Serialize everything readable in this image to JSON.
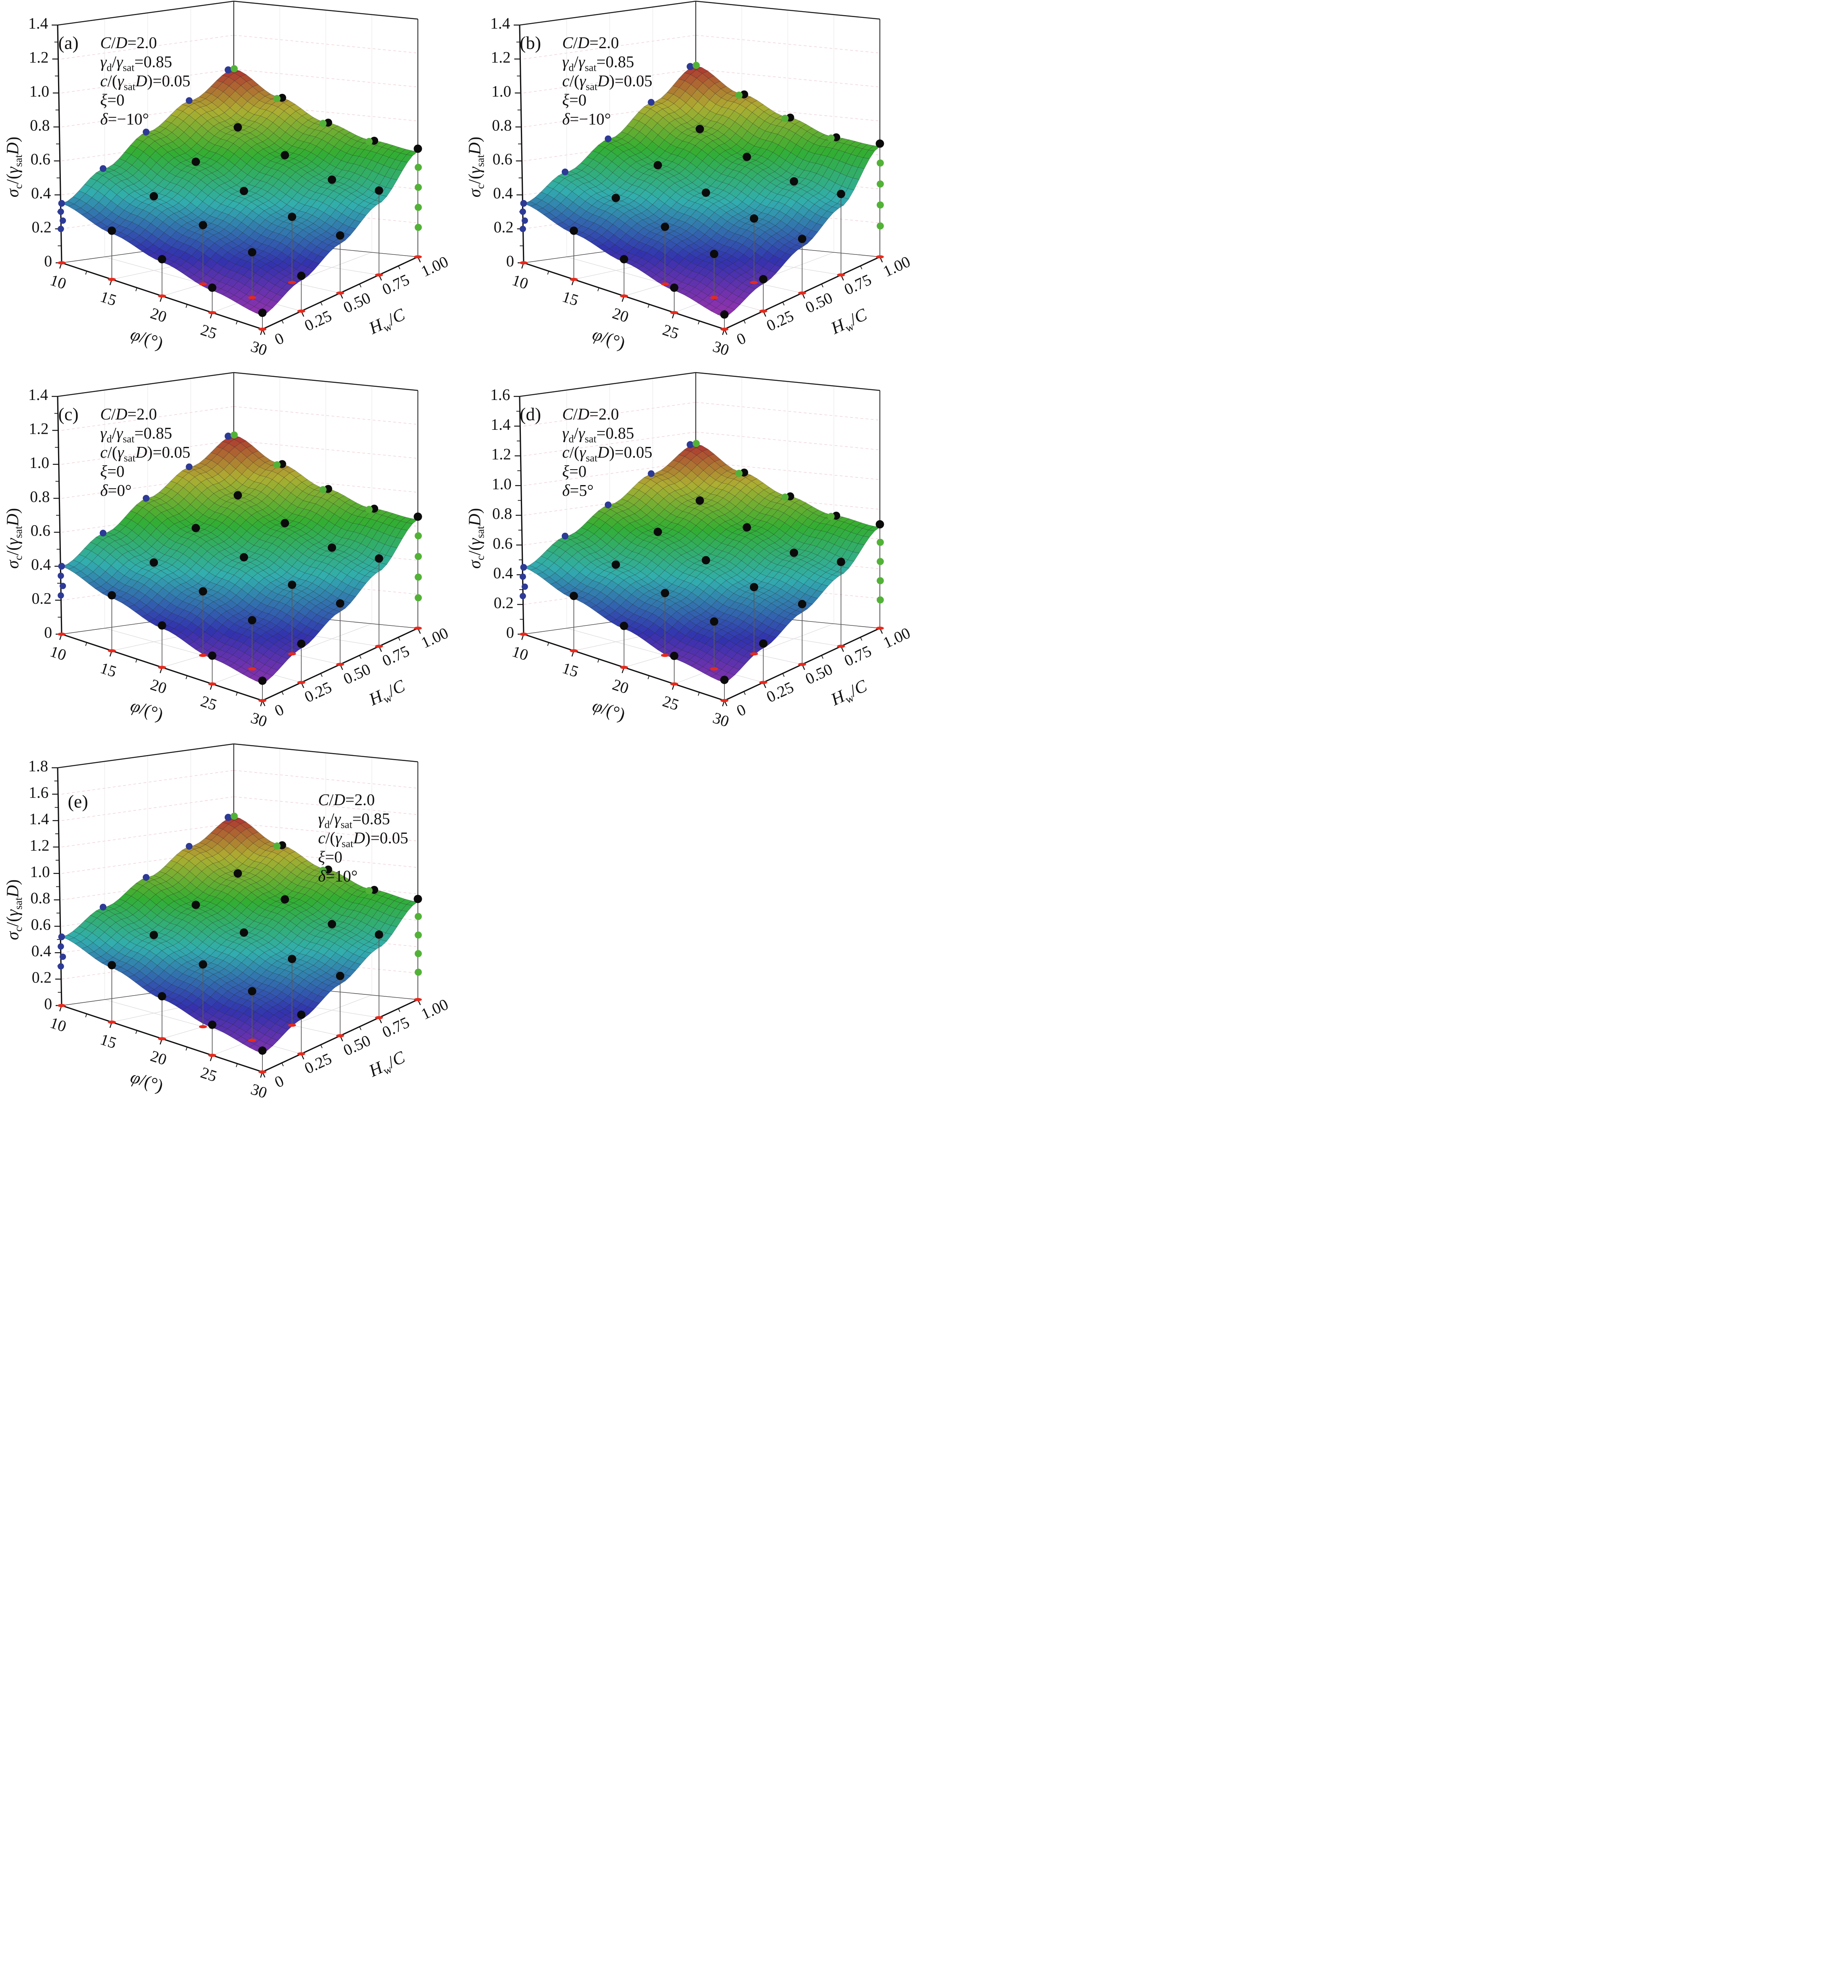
{
  "figure": {
    "title": "",
    "background": "#ffffff",
    "colors": {
      "frame": "#1c1c1c",
      "axis": "#111111",
      "floor_grid": "#d9d9d9",
      "wall_grid_pink": "#eac3c9",
      "wall_grid_gray": "#e6e6e6",
      "stem": "#5a5a5a",
      "dot_black": "#0b0b0b",
      "dot_green": "#52b237",
      "dot_blue": "#2d3a96",
      "marker_red": "#e8291c",
      "text": "#111111",
      "colormap_note": "rainbow: red=high, green=mid, blue=low, purple=lowest"
    },
    "axis_x": {
      "title_runs": [
        [
          "i",
          "φ"
        ],
        [
          "n",
          "/(°)"
        ]
      ],
      "tick_labels": [
        "10",
        "15",
        "20",
        "25",
        "30"
      ]
    },
    "axis_y": {
      "title_runs": [
        [
          "i",
          "H"
        ],
        [
          "sub",
          "w"
        ],
        [
          "n",
          "/"
        ],
        [
          "i",
          "C"
        ]
      ],
      "tick_labels": [
        "0",
        "0.25",
        "0.50",
        "0.75",
        "1.00"
      ]
    },
    "axis_z": {
      "title_runs": [
        [
          "i",
          "σ"
        ],
        [
          "sub",
          "c"
        ],
        [
          "n",
          "/("
        ],
        [
          "i",
          "γ"
        ],
        [
          "sub",
          "sat"
        ],
        [
          "i",
          "D"
        ],
        [
          "n",
          ")"
        ]
      ]
    },
    "annotation_shared_runs": [
      [
        [
          "i",
          "C"
        ],
        [
          "n",
          "/"
        ],
        [
          "i",
          "D"
        ],
        [
          "n",
          "=2.0"
        ]
      ],
      [
        [
          "i",
          "γ"
        ],
        [
          "sub",
          "d"
        ],
        [
          "n",
          "/"
        ],
        [
          "i",
          "γ"
        ],
        [
          "sub",
          "sat"
        ],
        [
          "n",
          "=0.85"
        ]
      ],
      [
        [
          "i",
          "c"
        ],
        [
          "n",
          "/("
        ],
        [
          "i",
          "γ"
        ],
        [
          "sub",
          "sat"
        ],
        [
          "i",
          "D"
        ],
        [
          "n",
          ")=0.05"
        ]
      ],
      [
        [
          "i",
          "ξ"
        ],
        [
          "n",
          "=0"
        ]
      ]
    ],
    "panels": [
      {
        "label": "(a)",
        "delta_runs": [
          [
            "i",
            "δ"
          ],
          [
            "n",
            "=−10°"
          ]
        ],
        "annotation_side": "left",
        "z_tick_labels": [
          "0",
          "0.2",
          "0.4",
          "0.6",
          "0.8",
          "1.0",
          "1.2",
          "1.4"
        ]
      },
      {
        "label": "(b)",
        "delta_runs": [
          [
            "i",
            "δ"
          ],
          [
            "n",
            "=−10°"
          ]
        ],
        "annotation_side": "left",
        "z_tick_labels": [
          "0",
          "0.2",
          "0.4",
          "0.6",
          "0.8",
          "1.0",
          "1.2",
          "1.4"
        ]
      },
      {
        "label": "(c)",
        "delta_runs": [
          [
            "i",
            "δ"
          ],
          [
            "n",
            "=0°"
          ]
        ],
        "annotation_side": "left",
        "z_tick_labels": [
          "0",
          "0.2",
          "0.4",
          "0.6",
          "0.8",
          "1.0",
          "1.2",
          "1.4"
        ]
      },
      {
        "label": "(d)",
        "delta_runs": [
          [
            "i",
            "δ"
          ],
          [
            "n",
            "=5°"
          ]
        ],
        "annotation_side": "left",
        "z_tick_labels": [
          "0",
          "0.2",
          "0.4",
          "0.6",
          "0.8",
          "1.0",
          "1.2",
          "1.4",
          "1.6"
        ]
      },
      {
        "label": "(e)",
        "delta_runs": [
          [
            "i",
            "δ"
          ],
          [
            "n",
            "=10°"
          ]
        ],
        "annotation_side": "right",
        "z_tick_labels": [
          "0",
          "0.2",
          "0.4",
          "0.6",
          "0.8",
          "1.0",
          "1.2",
          "1.4",
          "1.6",
          "1.8"
        ]
      }
    ],
    "markers": {
      "stem_nodes": [
        [
          1,
          0
        ],
        [
          2,
          0
        ],
        [
          3,
          0
        ],
        [
          4,
          0
        ],
        [
          2,
          1
        ],
        [
          3,
          1
        ],
        [
          4,
          1
        ],
        [
          3,
          2
        ],
        [
          4,
          2
        ],
        [
          4,
          3
        ],
        [
          4,
          4
        ]
      ],
      "red_base_nodes": [
        [
          0,
          0
        ],
        [
          1,
          0
        ],
        [
          2,
          0
        ],
        [
          3,
          0
        ],
        [
          4,
          0
        ],
        [
          2,
          1
        ],
        [
          3,
          1
        ],
        [
          4,
          1
        ],
        [
          3,
          2
        ],
        [
          4,
          2
        ],
        [
          4,
          3
        ],
        [
          4,
          4
        ]
      ],
      "black_nodes_phi_idx_by_h_idx": "phi 15–30 at Hw/C 0–0.75, plus right corner and back-edge pairs",
      "green_edge_phi_idx": [
        0,
        1,
        2,
        3
      ],
      "blue_edge_h_idx": [
        0,
        1,
        2,
        3,
        4
      ],
      "green_corner_stack_fractions": [
        0.28,
        0.47,
        0.66,
        0.85
      ],
      "blue_axis_stack_fractions": [
        0.57,
        0.71,
        0.86
      ]
    }
  },
  "chart_data": [
    {
      "panel": "a",
      "type": "heatmap",
      "projection": "3d-surface",
      "title": "",
      "xlabel": "φ/(°)",
      "ylabel": "Hw/C",
      "zlabel": "σc/(γsatD)",
      "x_values": [
        10,
        15,
        20,
        25,
        30
      ],
      "y_values": [
        0,
        0.25,
        0.5,
        0.75,
        1.0
      ],
      "z_grid_rows_phi_cols_hwc": [
        [
          0.35,
          0.52,
          0.7,
          0.85,
          1.0
        ],
        [
          0.27,
          0.42,
          0.57,
          0.72,
          0.86
        ],
        [
          0.2,
          0.33,
          0.46,
          0.6,
          0.74
        ],
        [
          0.13,
          0.25,
          0.37,
          0.5,
          0.66
        ],
        [
          0.08,
          0.18,
          0.29,
          0.42,
          0.62
        ]
      ],
      "zlim": [
        0,
        1.4
      ],
      "params": {
        "C/D": "2.0",
        "γd/γsat": "0.85",
        "c/(γsatD)": "0.05",
        "ξ": "0",
        "δ": "−10°"
      }
    },
    {
      "panel": "b",
      "type": "heatmap",
      "projection": "3d-surface",
      "title": "",
      "xlabel": "φ/(°)",
      "ylabel": "Hw/C",
      "zlabel": "σc/(γsatD)",
      "x_values": [
        10,
        15,
        20,
        25,
        30
      ],
      "y_values": [
        0,
        0.25,
        0.5,
        0.75,
        1.0
      ],
      "z_grid_rows_phi_cols_hwc": [
        [
          0.35,
          0.5,
          0.66,
          0.84,
          1.02
        ],
        [
          0.27,
          0.41,
          0.55,
          0.71,
          0.88
        ],
        [
          0.2,
          0.32,
          0.45,
          0.59,
          0.77
        ],
        [
          0.13,
          0.24,
          0.36,
          0.49,
          0.68
        ],
        [
          0.07,
          0.16,
          0.27,
          0.4,
          0.65
        ]
      ],
      "zlim": [
        0,
        1.4
      ],
      "params": {
        "C/D": "2.0",
        "γd/γsat": "0.85",
        "c/(γsatD)": "0.05",
        "ξ": "0",
        "δ": "−10°"
      }
    },
    {
      "panel": "c",
      "type": "heatmap",
      "projection": "3d-surface",
      "title": "",
      "xlabel": "φ/(°)",
      "ylabel": "Hw/C",
      "zlabel": "σc/(γsatD)",
      "x_values": [
        10,
        15,
        20,
        25,
        30
      ],
      "y_values": [
        0,
        0.25,
        0.5,
        0.75,
        1.0
      ],
      "z_grid_rows_phi_cols_hwc": [
        [
          0.4,
          0.56,
          0.73,
          0.88,
          1.03
        ],
        [
          0.31,
          0.45,
          0.6,
          0.74,
          0.89
        ],
        [
          0.23,
          0.36,
          0.49,
          0.62,
          0.77
        ],
        [
          0.15,
          0.27,
          0.39,
          0.52,
          0.68
        ],
        [
          0.1,
          0.2,
          0.31,
          0.44,
          0.64
        ]
      ],
      "zlim": [
        0,
        1.4
      ],
      "params": {
        "C/D": "2.0",
        "γd/γsat": "0.85",
        "c/(γsatD)": "0.05",
        "ξ": "0",
        "δ": "0°"
      }
    },
    {
      "panel": "d",
      "type": "heatmap",
      "projection": "3d-surface",
      "title": "",
      "xlabel": "φ/(°)",
      "ylabel": "Hw/C",
      "zlabel": "σc/(γsatD)",
      "x_values": [
        10,
        15,
        20,
        25,
        30
      ],
      "y_values": [
        0,
        0.25,
        0.5,
        0.75,
        1.0
      ],
      "z_grid_rows_phi_cols_hwc": [
        [
          0.45,
          0.62,
          0.79,
          0.96,
          1.12
        ],
        [
          0.35,
          0.5,
          0.66,
          0.81,
          0.96
        ],
        [
          0.26,
          0.4,
          0.54,
          0.68,
          0.83
        ],
        [
          0.17,
          0.3,
          0.43,
          0.56,
          0.73
        ],
        [
          0.12,
          0.23,
          0.35,
          0.48,
          0.68
        ]
      ],
      "zlim": [
        0,
        1.6
      ],
      "params": {
        "C/D": "2.0",
        "γd/γsat": "0.85",
        "c/(γsatD)": "0.05",
        "ξ": "0",
        "δ": "5°"
      }
    },
    {
      "panel": "e",
      "type": "heatmap",
      "projection": "3d-surface",
      "title": "",
      "xlabel": "φ/(°)",
      "ylabel": "Hw/C",
      "zlabel": "σc/(γsatD)",
      "x_values": [
        10,
        15,
        20,
        25,
        30
      ],
      "y_values": [
        0,
        0.25,
        0.5,
        0.75,
        1.0
      ],
      "z_grid_rows_phi_cols_hwc": [
        [
          0.52,
          0.7,
          0.88,
          1.07,
          1.25
        ],
        [
          0.41,
          0.57,
          0.73,
          0.9,
          1.07
        ],
        [
          0.3,
          0.45,
          0.6,
          0.76,
          0.92
        ],
        [
          0.21,
          0.35,
          0.48,
          0.63,
          0.8
        ],
        [
          0.14,
          0.26,
          0.39,
          0.53,
          0.74
        ]
      ],
      "zlim": [
        0,
        1.8
      ],
      "params": {
        "C/D": "2.0",
        "γd/γsat": "0.85",
        "c/(γsatD)": "0.05",
        "ξ": "0",
        "δ": "10°"
      }
    }
  ]
}
